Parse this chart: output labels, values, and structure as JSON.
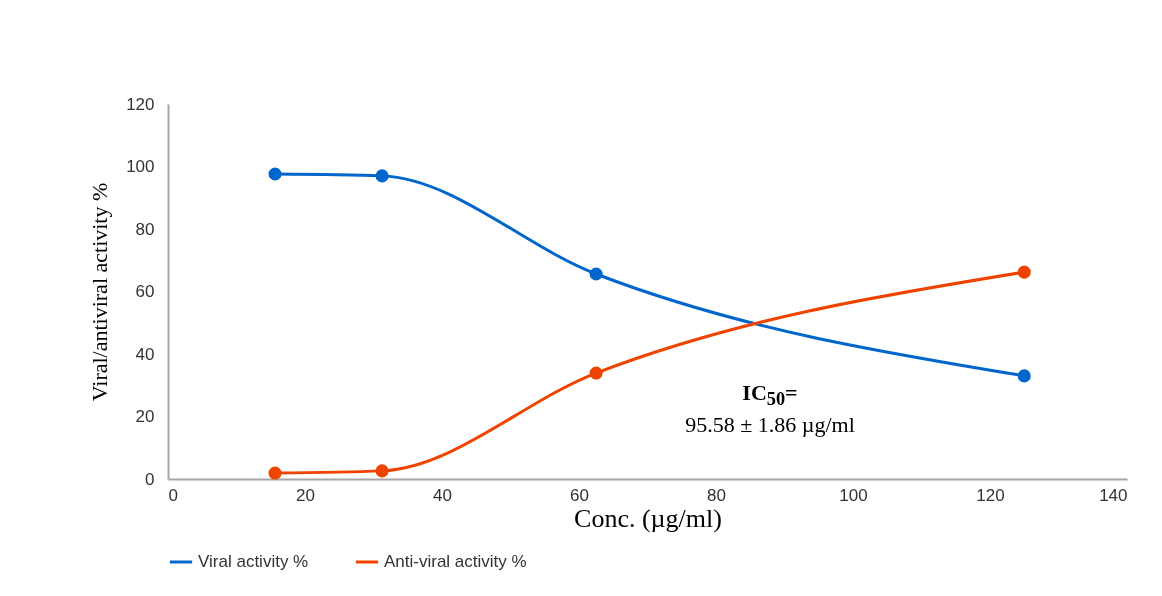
{
  "chart_data": {
    "type": "line",
    "xlabel": "Conc. (µg/ml)",
    "ylabel": "Viral/antiviral activity %",
    "x": [
      15.625,
      31.25,
      62.5,
      125
    ],
    "series": [
      {
        "name": "Viral activity %",
        "color": "#0066cc",
        "values": [
          97.6,
          97,
          65.6,
          33
        ]
      },
      {
        "name": "Anti-viral activity %",
        "color": "#ee4400",
        "values": [
          1.9,
          2.6,
          33.9,
          66.2
        ]
      }
    ],
    "xlim": [
      0,
      140
    ],
    "xticks": [
      0,
      20,
      40,
      60,
      80,
      100,
      120,
      140
    ],
    "ylim": [
      0,
      120
    ],
    "yticks": [
      0,
      20,
      40,
      60,
      80,
      100,
      120
    ],
    "marker": "circle",
    "legend": "bottom",
    "annotations": [
      "IC$_{50}$=",
      "95.58 ± 1.86 µg/ml"
    ]
  }
}
